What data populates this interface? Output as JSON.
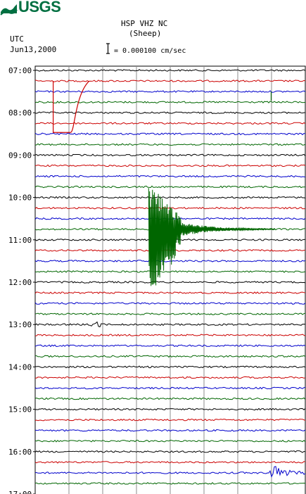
{
  "header": {
    "agency": "USGS",
    "station": "HSP VHZ NC",
    "site": "(Sheep)",
    "timezone": "UTC",
    "date": "Jun13,2000",
    "scale_label": "= 0.000100 cm/sec"
  },
  "colors": {
    "logo": "#006f41",
    "trace_cycle": [
      "#000000",
      "#cc0000",
      "#0000cc",
      "#006600"
    ],
    "grid": "#8c8c8c"
  },
  "chart_data": {
    "type": "line",
    "title": "HSP VHZ NC (Sheep)",
    "time_axis_labels": [
      "07:00",
      "08:00",
      "09:00",
      "10:00",
      "11:00",
      "12:00",
      "13:00",
      "14:00",
      "15:00",
      "16:00",
      "17:00"
    ],
    "start_hour": 7,
    "minutes_per_trace": 15,
    "trace_count": 40,
    "vertical_grid_divisions": 8,
    "scale": "0.000100 cm/sec",
    "events": [
      {
        "desc": "calibration step",
        "start_trace": 1,
        "end_trace": 5,
        "time_min": [
          1,
          3
        ]
      },
      {
        "desc": "small spike",
        "trace": 2,
        "time_min": 13.1
      },
      {
        "desc": "large earthquake",
        "trace": 15,
        "start_min": 6.3,
        "duration_min": 7,
        "spans_traces": [
          14,
          23
        ]
      },
      {
        "desc": "small burst",
        "trace": 24,
        "start_min": 3.1,
        "duration_min": 0.8
      },
      {
        "desc": "earthquake",
        "trace": 38,
        "start_min": 13,
        "duration_min": 3
      }
    ]
  }
}
